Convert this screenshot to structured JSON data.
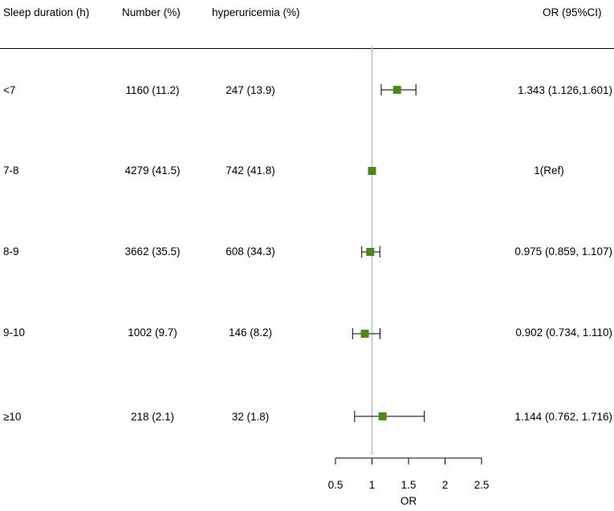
{
  "headers": {
    "sleep": "Sleep duration (h)",
    "number": "Number (%)",
    "hyperuricemia": "hyperuricemia  (%)",
    "or": "OR (95%CI)"
  },
  "rows": [
    {
      "label": "<7",
      "number": "1160 (11.2)",
      "hyperuricemia": "247 (13.9)",
      "or_text": "1.343 (1.126,1.601)"
    },
    {
      "label": "7-8",
      "number": "4279 (41.5)",
      "hyperuricemia": "742 (41.8)",
      "or_text": "1(Ref)"
    },
    {
      "label": "8-9",
      "number": "3662 (35.5)",
      "hyperuricemia": "608 (34.3)",
      "or_text": "0.975 (0.859, 1.107)"
    },
    {
      "label": "9-10",
      "number": "1002 (9.7)",
      "hyperuricemia": "146 (8.2)",
      "or_text": "0.902 (0.734, 1.110)"
    },
    {
      "label": "≥10",
      "number": "218 (2.1)",
      "hyperuricemia": "32 (1.8)",
      "or_text": "1.144 (0.762, 1.716)"
    }
  ],
  "chart_data": {
    "type": "forest",
    "xlabel": "OR",
    "xlim": [
      0.5,
      2.5
    ],
    "xticks": [
      "0.5",
      "1",
      "1.5",
      "2",
      "2.5"
    ],
    "reference_line": 1,
    "categories": [
      "<7",
      "7-8",
      "8-9",
      "9-10",
      "≥10"
    ],
    "series": [
      {
        "estimate": [
          1.343,
          1,
          0.975,
          0.902,
          1.144
        ],
        "lower": [
          1.126,
          null,
          0.859,
          0.734,
          0.762
        ],
        "upper": [
          1.601,
          null,
          1.107,
          1.11,
          1.716
        ]
      }
    ]
  },
  "colors": {
    "marker": "#4a8a1c",
    "reference_line": "#a8c8d0",
    "text": "#000000"
  }
}
